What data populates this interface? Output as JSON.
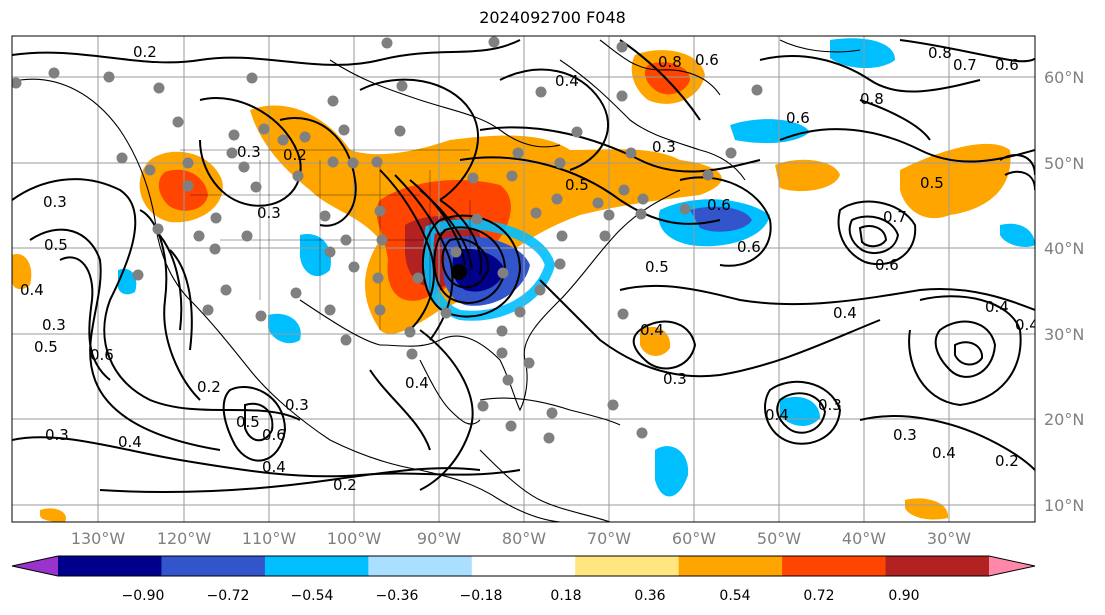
{
  "title": "2024092700 F048",
  "map": {
    "lon_labels": [
      "130°W",
      "120°W",
      "110°W",
      "100°W",
      "90°W",
      "80°W",
      "70°W",
      "60°W",
      "50°W",
      "40°W",
      "30°W"
    ],
    "lat_labels": [
      "60°N",
      "50°N",
      "40°N",
      "30°N",
      "20°N",
      "10°N"
    ],
    "contour_labels": [
      "0.2",
      "0.3",
      "0.4",
      "0.5",
      "0.6",
      "0.7",
      "0.8"
    ]
  },
  "colorbar": {
    "ticks": [
      "−0.90",
      "−0.72",
      "−0.54",
      "−0.36",
      "−0.18",
      "0.18",
      "0.36",
      "0.54",
      "0.72",
      "0.90"
    ],
    "colors": [
      "#9933cc",
      "#00008b",
      "#3355cc",
      "#00bfff",
      "#aadfff",
      "#ffffff",
      "#ffe680",
      "#ffa500",
      "#ff4500",
      "#b22222",
      "#ff88aa"
    ]
  }
}
